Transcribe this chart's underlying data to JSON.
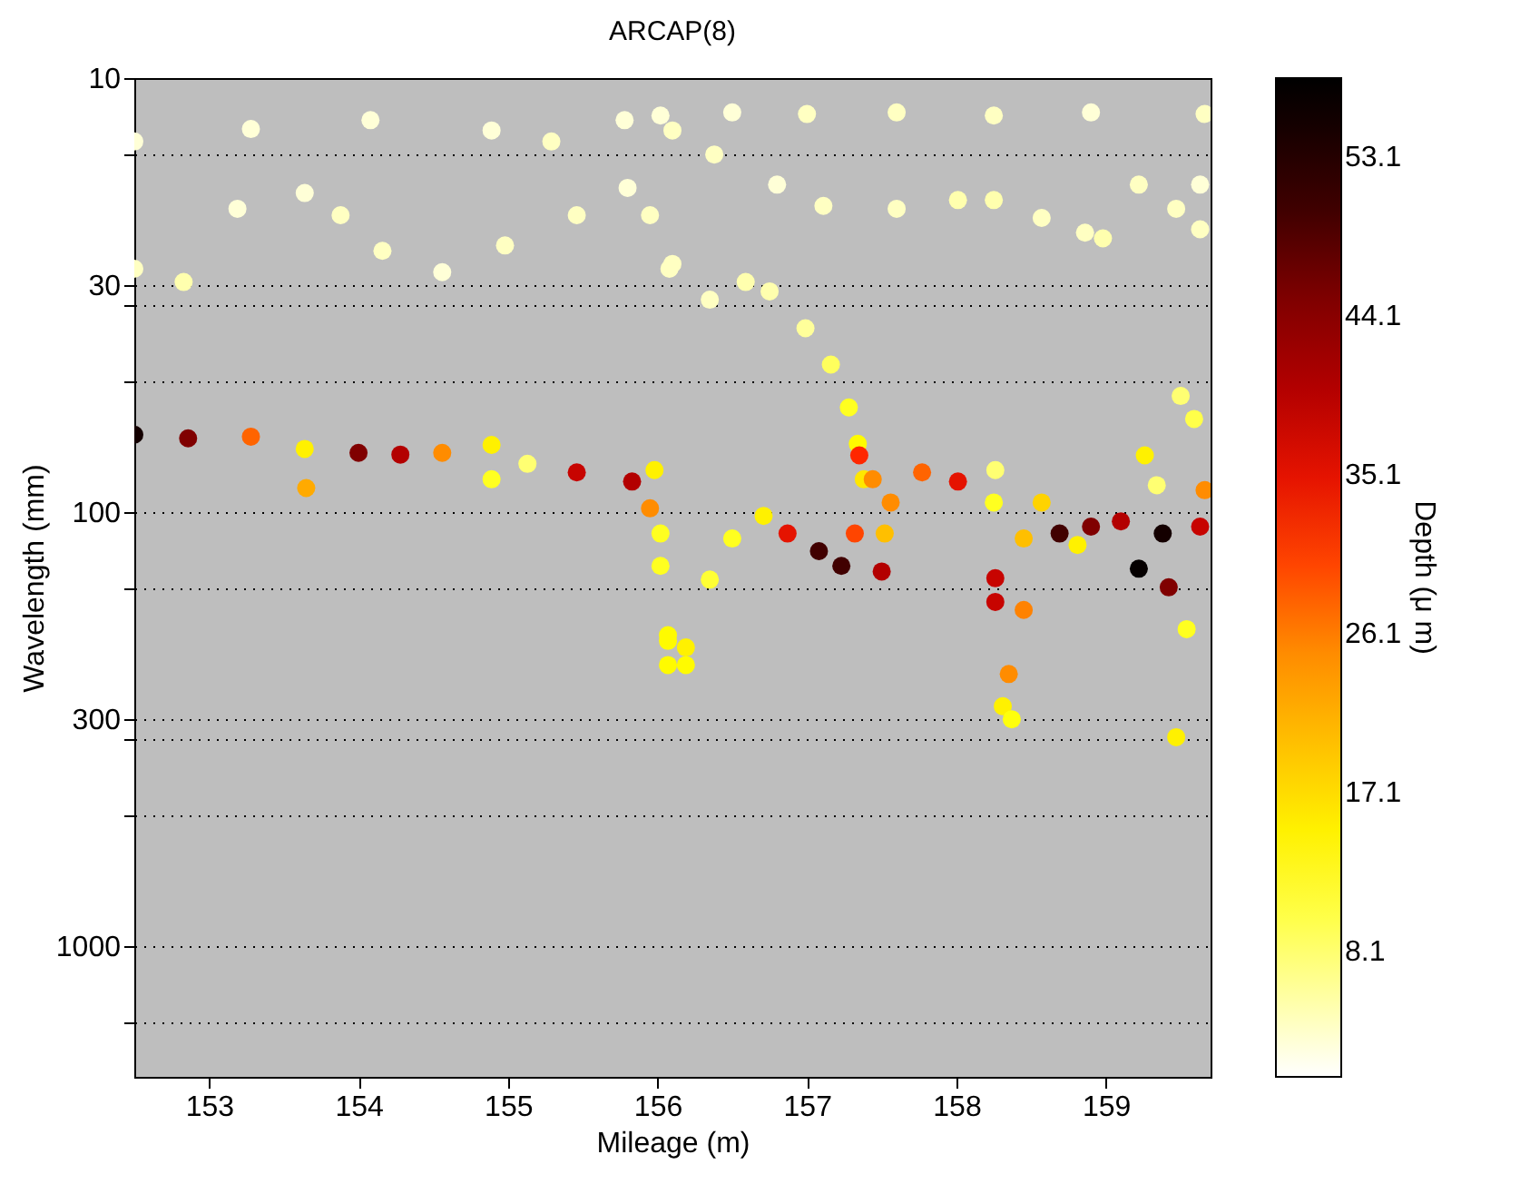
{
  "chart_data": {
    "type": "scatter",
    "title": "ARCAP(8)",
    "xlabel": "Mileage (m)",
    "ylabel": "Wavelength (mm)",
    "clabel": "Depth (μ m)",
    "xlim": [
      152.5,
      159.7
    ],
    "xticks": [
      153,
      154,
      155,
      156,
      157,
      158,
      159
    ],
    "ylim": [
      2000,
      10
    ],
    "log": "y",
    "yticks": [
      10,
      {
        "value": 15,
        "label": null
      },
      30,
      {
        "value": 33.3,
        "label": null
      },
      {
        "value": 50,
        "label": null
      },
      100,
      {
        "value": 150,
        "label": null
      },
      300,
      {
        "value": 333.3,
        "label": null
      },
      {
        "value": 500,
        "label": null
      },
      1000,
      {
        "value": 1500,
        "label": null
      }
    ],
    "grid": "y",
    "marker": "circle",
    "clim": [
      1,
      57.6
    ],
    "cticks": [
      8.1,
      17.1,
      26.1,
      35.1,
      44.1,
      53.1
    ],
    "series": [
      {
        "x": [
          152.5,
          153.28,
          154.08,
          154.89,
          155.29,
          155.78,
          156.02,
          156.5,
          157,
          157.6,
          158.25,
          158.9,
          159.66,
          152.5,
          152.83,
          153.19,
          153.64,
          153.88,
          154.16,
          154.56,
          154.98,
          155.46,
          155.8,
          155.95,
          156.08,
          156.1,
          156.35,
          156.59,
          156.75,
          156.99,
          157.16,
          157.28,
          157.34,
          157.38,
          156.1,
          156.38,
          156.8,
          157.11,
          157.6,
          158.01,
          158.25,
          158.57,
          158.86,
          158.98,
          159.22,
          159.47,
          159.63,
          159.63,
          152.5,
          152.86,
          153.28,
          153.64,
          153.65,
          154.0,
          154.28,
          154.56,
          154.89,
          154.89,
          155.13,
          155.46,
          155.83,
          155.98,
          155.95,
          156.02,
          156.02,
          156.07,
          156.07,
          156.07,
          156.19,
          156.19,
          156.35,
          156.5,
          156.71,
          156.87,
          157.08,
          157.23,
          157.32,
          157.35,
          157.44,
          157.52,
          157.5,
          157.56,
          157.77,
          158.01,
          158.25,
          158.26,
          158.26,
          158.26,
          158.31,
          158.35,
          158.37,
          158.45,
          158.45,
          158.57,
          158.69,
          158.81,
          158.9,
          159.1,
          159.22,
          159.26,
          159.34,
          159.38,
          159.42,
          159.54,
          159.5,
          159.59,
          159.63,
          159.66,
          159.47
        ],
        "values": [
          14,
          13.1,
          12.5,
          13.2,
          14,
          12.5,
          12.2,
          12,
          12.1,
          12,
          12.2,
          12,
          12.1,
          27.5,
          29.5,
          20,
          18.4,
          20.7,
          25,
          28,
          24.3,
          20.7,
          17.9,
          20.7,
          27.5,
          26.8,
          32.4,
          29.5,
          31,
          37.7,
          45.7,
          57.4,
          69.6,
          84,
          13.2,
          15,
          17.6,
          19.7,
          20,
          19.1,
          19.1,
          21,
          22.7,
          23.4,
          17.6,
          20,
          17.6,
          22.3,
          66.3,
          67.6,
          67,
          71.5,
          88,
          73,
          73.7,
          73,
          70,
          84,
          77.4,
          81,
          85,
          80,
          98,
          112,
          133,
          192,
          225,
          198,
          205,
          225,
          143,
          115,
          102,
          112,
          123,
          133,
          112,
          74,
          84,
          112,
          137,
          95,
          81,
          85,
          95,
          80,
          142,
          161,
          280,
          236,
          300,
          115,
          168,
          95,
          112,
          119,
          108,
          105,
          135,
          74,
          86.7,
          112,
          149,
          186,
          54,
          61,
          108,
          89,
          330
        ],
        "cvalues": [
          3,
          3,
          3,
          3,
          4,
          3,
          3,
          3,
          4,
          4,
          4,
          3,
          4,
          4,
          5,
          3,
          3,
          4,
          4,
          3,
          4,
          4,
          3,
          4,
          4,
          4,
          4,
          5,
          5,
          6,
          9,
          12,
          14,
          16,
          4,
          4,
          3,
          4,
          4,
          5,
          5,
          4,
          4,
          5,
          4,
          4,
          3,
          4,
          55,
          45,
          28,
          15,
          22,
          45,
          40,
          25,
          15,
          12,
          8,
          38,
          40,
          15,
          25,
          12,
          12,
          14,
          14,
          14,
          15,
          14,
          11,
          12,
          15,
          35,
          50,
          50,
          30,
          32,
          25,
          20,
          40,
          25,
          28,
          35,
          12,
          8,
          38,
          38,
          15,
          25,
          13,
          20,
          26,
          18,
          50,
          15,
          45,
          40,
          57,
          15,
          8,
          55,
          45,
          12,
          8,
          10,
          38,
          25,
          15
        ]
      }
    ]
  }
}
